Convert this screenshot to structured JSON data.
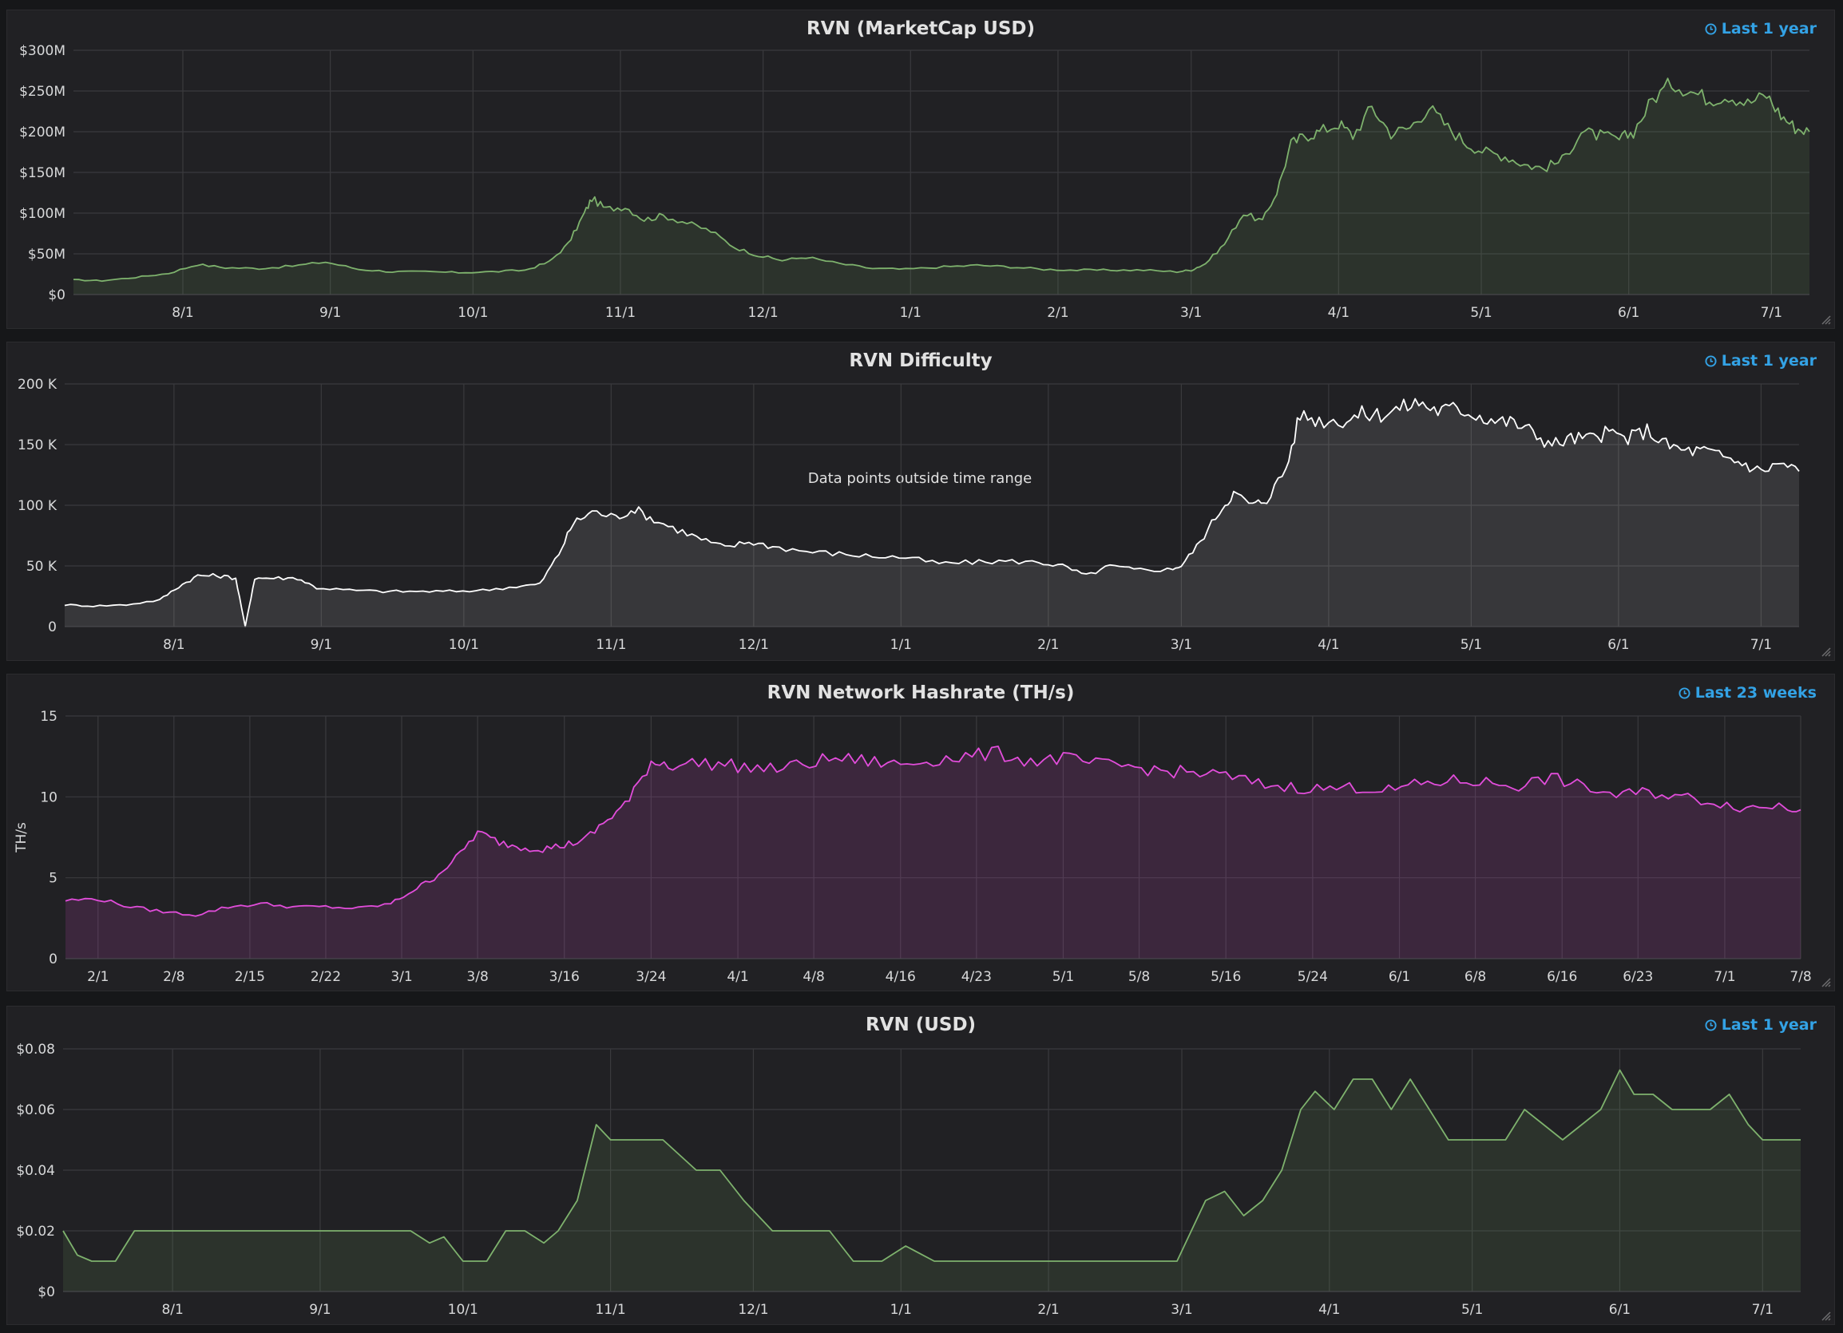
{
  "panels": [
    {
      "title": "RVN (MarketCap USD)",
      "time_info": "Last 1 year",
      "icon": "clock-icon"
    },
    {
      "title": "RVN Difficulty",
      "time_info": "Last 1 year",
      "icon": "clock-icon",
      "annotation": "Data points outside time range"
    },
    {
      "title": "RVN Network Hashrate (TH/s)",
      "time_info": "Last 23 weeks",
      "icon": "clock-icon"
    },
    {
      "title": "RVN (USD)",
      "time_info": "Last 1 year",
      "icon": "clock-icon"
    }
  ],
  "chart_data": [
    {
      "type": "area",
      "title": "RVN (MarketCap USD)",
      "ylabel": "",
      "ylim": [
        0,
        300
      ],
      "y_unit": "millions USD",
      "y_ticks": [
        0,
        50,
        100,
        150,
        200,
        250,
        300
      ],
      "y_tick_labels": [
        "$0",
        "$50M",
        "$100M",
        "$150M",
        "$200M",
        "$250M",
        "$300M"
      ],
      "x_tick_labels": [
        "8/1",
        "9/1",
        "10/1",
        "11/1",
        "12/1",
        "1/1",
        "2/1",
        "3/1",
        "4/1",
        "5/1",
        "6/1",
        "7/1"
      ],
      "x_range": [
        "2018-07-09",
        "2019-07-09"
      ],
      "color": "#7eb26d",
      "grid": true,
      "series": [
        {
          "x": [
            "2018-07-09",
            "2018-07-15",
            "2018-07-22",
            "2018-07-29",
            "2018-08-04",
            "2018-08-10",
            "2018-08-17",
            "2018-08-24",
            "2018-08-31",
            "2018-09-07",
            "2018-09-14",
            "2018-09-21",
            "2018-09-28",
            "2018-10-05",
            "2018-10-12",
            "2018-10-17",
            "2018-10-21",
            "2018-10-24",
            "2018-10-26",
            "2018-10-29",
            "2018-11-02",
            "2018-11-06",
            "2018-11-10",
            "2018-11-15",
            "2018-11-20",
            "2018-11-25",
            "2018-11-30",
            "2018-12-05",
            "2018-12-10",
            "2018-12-17",
            "2018-12-24",
            "2018-12-31",
            "2019-01-08",
            "2019-01-15",
            "2019-01-22",
            "2019-01-29",
            "2019-02-05",
            "2019-02-12",
            "2019-02-19",
            "2019-02-26",
            "2019-03-01",
            "2019-03-04",
            "2019-03-08",
            "2019-03-12",
            "2019-03-16",
            "2019-03-19",
            "2019-03-22",
            "2019-03-25",
            "2019-03-28",
            "2019-04-01",
            "2019-04-04",
            "2019-04-08",
            "2019-04-12",
            "2019-04-16",
            "2019-04-20",
            "2019-04-24",
            "2019-04-28",
            "2019-05-02",
            "2019-05-06",
            "2019-05-10",
            "2019-05-14",
            "2019-05-18",
            "2019-05-22",
            "2019-05-26",
            "2019-05-30",
            "2019-06-02",
            "2019-06-06",
            "2019-06-10",
            "2019-06-14",
            "2019-06-18",
            "2019-06-22",
            "2019-06-26",
            "2019-06-30",
            "2019-07-03",
            "2019-07-06",
            "2019-07-09"
          ],
          "values": [
            18,
            17,
            21,
            26,
            37,
            33,
            32,
            35,
            40,
            31,
            28,
            28,
            27,
            28,
            30,
            40,
            62,
            95,
            118,
            105,
            108,
            92,
            97,
            88,
            78,
            58,
            48,
            42,
            46,
            38,
            32,
            31,
            34,
            36,
            34,
            31,
            30,
            30,
            30,
            28,
            30,
            38,
            62,
            100,
            90,
            126,
            185,
            195,
            200,
            210,
            195,
            230,
            198,
            205,
            230,
            205,
            185,
            175,
            170,
            160,
            155,
            165,
            200,
            195,
            190,
            200,
            240,
            260,
            250,
            240,
            245,
            235,
            245,
            220,
            205,
            200
          ]
        }
      ]
    },
    {
      "type": "area",
      "title": "RVN Difficulty",
      "ylabel": "",
      "ylim": [
        0,
        200
      ],
      "y_unit": "thousands",
      "y_ticks": [
        0,
        50,
        100,
        150,
        200
      ],
      "y_tick_labels": [
        "0",
        "50 K",
        "100 K",
        "150 K",
        "200 K"
      ],
      "x_tick_labels": [
        "8/1",
        "9/1",
        "10/1",
        "11/1",
        "12/1",
        "1/1",
        "2/1",
        "3/1",
        "4/1",
        "5/1",
        "6/1",
        "7/1"
      ],
      "x_range": [
        "2018-07-09",
        "2019-07-09"
      ],
      "color": "#ffffff",
      "grid": true,
      "series": [
        {
          "x": [
            "2018-07-09",
            "2018-07-15",
            "2018-07-22",
            "2018-07-29",
            "2018-08-02",
            "2018-08-06",
            "2018-08-10",
            "2018-08-14",
            "2018-08-16",
            "2018-08-18",
            "2018-08-22",
            "2018-08-27",
            "2018-08-31",
            "2018-09-07",
            "2018-09-14",
            "2018-09-21",
            "2018-09-28",
            "2018-10-05",
            "2018-10-12",
            "2018-10-17",
            "2018-10-21",
            "2018-10-24",
            "2018-10-28",
            "2018-11-02",
            "2018-11-06",
            "2018-11-10",
            "2018-11-15",
            "2018-11-20",
            "2018-11-25",
            "2018-11-30",
            "2018-12-05",
            "2018-12-12",
            "2018-12-19",
            "2018-12-26",
            "2019-01-02",
            "2019-01-09",
            "2019-01-16",
            "2019-01-23",
            "2019-01-30",
            "2019-02-04",
            "2019-02-09",
            "2019-02-14",
            "2019-02-19",
            "2019-02-26",
            "2019-03-01",
            "2019-03-05",
            "2019-03-09",
            "2019-03-12",
            "2019-03-16",
            "2019-03-19",
            "2019-03-23",
            "2019-03-26",
            "2019-03-30",
            "2019-04-04",
            "2019-04-08",
            "2019-04-12",
            "2019-04-16",
            "2019-04-20",
            "2019-04-24",
            "2019-04-28",
            "2019-05-02",
            "2019-05-06",
            "2019-05-10",
            "2019-05-14",
            "2019-05-18",
            "2019-05-22",
            "2019-05-26",
            "2019-05-30",
            "2019-06-03",
            "2019-06-07",
            "2019-06-11",
            "2019-06-15",
            "2019-06-19",
            "2019-06-23",
            "2019-06-27",
            "2019-07-01",
            "2019-07-05",
            "2019-07-09"
          ],
          "values": [
            18,
            17,
            18,
            22,
            33,
            42,
            42,
            40,
            0,
            40,
            40,
            40,
            32,
            30,
            29,
            29,
            29,
            30,
            33,
            35,
            60,
            85,
            95,
            90,
            97,
            88,
            80,
            72,
            65,
            70,
            66,
            62,
            60,
            58,
            57,
            52,
            53,
            54,
            53,
            50,
            42,
            50,
            47,
            47,
            50,
            70,
            95,
            110,
            100,
            105,
            130,
            175,
            170,
            170,
            175,
            175,
            180,
            185,
            178,
            180,
            175,
            170,
            168,
            160,
            150,
            155,
            155,
            160,
            155,
            162,
            150,
            145,
            145,
            140,
            135,
            128,
            135,
            128
          ]
        }
      ]
    },
    {
      "type": "area",
      "title": "RVN Network Hashrate (TH/s)",
      "ylabel": "TH/s",
      "ylim": [
        0,
        15
      ],
      "y_ticks": [
        0,
        5,
        10,
        15
      ],
      "y_tick_labels": [
        "0",
        "5",
        "10",
        "15"
      ],
      "x_tick_labels": [
        "2/1",
        "2/8",
        "2/15",
        "2/22",
        "3/1",
        "3/8",
        "3/16",
        "3/24",
        "4/1",
        "4/8",
        "4/16",
        "4/23",
        "5/1",
        "5/8",
        "5/16",
        "5/24",
        "6/1",
        "6/8",
        "6/16",
        "6/23",
        "7/1",
        "7/8"
      ],
      "x_range": [
        "2019-01-29",
        "2019-07-08"
      ],
      "color": "#e24ddb",
      "grid": true,
      "series": [
        {
          "x": [
            "2019-01-29",
            "2019-02-01",
            "2019-02-04",
            "2019-02-07",
            "2019-02-10",
            "2019-02-13",
            "2019-02-16",
            "2019-02-19",
            "2019-02-22",
            "2019-02-25",
            "2019-02-28",
            "2019-03-02",
            "2019-03-04",
            "2019-03-06",
            "2019-03-08",
            "2019-03-10",
            "2019-03-12",
            "2019-03-14",
            "2019-03-16",
            "2019-03-18",
            "2019-03-20",
            "2019-03-22",
            "2019-03-24",
            "2019-03-26",
            "2019-03-29",
            "2019-04-01",
            "2019-04-04",
            "2019-04-07",
            "2019-04-10",
            "2019-04-13",
            "2019-04-16",
            "2019-04-19",
            "2019-04-22",
            "2019-04-25",
            "2019-04-28",
            "2019-05-01",
            "2019-05-04",
            "2019-05-07",
            "2019-05-10",
            "2019-05-13",
            "2019-05-16",
            "2019-05-19",
            "2019-05-22",
            "2019-05-25",
            "2019-05-28",
            "2019-05-31",
            "2019-06-03",
            "2019-06-06",
            "2019-06-09",
            "2019-06-12",
            "2019-06-15",
            "2019-06-18",
            "2019-06-21",
            "2019-06-24",
            "2019-06-27",
            "2019-06-30",
            "2019-07-03",
            "2019-07-06",
            "2019-07-08"
          ],
          "values": [
            3.6,
            3.7,
            3.2,
            2.9,
            2.7,
            3.2,
            3.4,
            3.2,
            3.2,
            3.1,
            3.4,
            4.2,
            5.0,
            6.2,
            7.8,
            7.2,
            6.9,
            6.8,
            7.0,
            7.4,
            8.6,
            9.8,
            12.2,
            12.0,
            12.1,
            11.9,
            11.7,
            12.0,
            12.4,
            12.2,
            12.0,
            12.3,
            12.5,
            12.7,
            12.2,
            12.4,
            12.0,
            11.9,
            11.6,
            11.5,
            11.3,
            10.8,
            10.6,
            10.5,
            10.6,
            10.4,
            10.8,
            11.0,
            10.9,
            10.7,
            11.2,
            10.6,
            10.1,
            10.3,
            10.0,
            9.7,
            9.3,
            9.5,
            9.2
          ]
        }
      ]
    },
    {
      "type": "area",
      "title": "RVN (USD)",
      "ylabel": "",
      "ylim": [
        0,
        0.08
      ],
      "y_ticks": [
        0,
        0.02,
        0.04,
        0.06,
        0.08
      ],
      "y_tick_labels": [
        "$0",
        "$0.02",
        "$0.04",
        "$0.06",
        "$0.08"
      ],
      "x_tick_labels": [
        "8/1",
        "9/1",
        "10/1",
        "11/1",
        "12/1",
        "1/1",
        "2/1",
        "3/1",
        "4/1",
        "5/1",
        "6/1",
        "7/1"
      ],
      "x_range": [
        "2018-07-09",
        "2019-07-09"
      ],
      "color": "#7eb26d",
      "grid": true,
      "series": [
        {
          "x": [
            "2018-07-09",
            "2018-07-12",
            "2018-07-15",
            "2018-07-20",
            "2018-07-24",
            "2018-08-05",
            "2018-08-20",
            "2018-09-05",
            "2018-09-20",
            "2018-09-24",
            "2018-09-27",
            "2018-10-01",
            "2018-10-06",
            "2018-10-10",
            "2018-10-14",
            "2018-10-18",
            "2018-10-21",
            "2018-10-25",
            "2018-10-29",
            "2018-11-01",
            "2018-11-06",
            "2018-11-12",
            "2018-11-19",
            "2018-11-24",
            "2018-11-29",
            "2018-12-05",
            "2018-12-12",
            "2018-12-17",
            "2018-12-22",
            "2018-12-28",
            "2019-01-02",
            "2019-01-08",
            "2019-01-14",
            "2019-01-20",
            "2019-01-25",
            "2019-02-01",
            "2019-02-10",
            "2019-02-20",
            "2019-02-28",
            "2019-03-03",
            "2019-03-06",
            "2019-03-10",
            "2019-03-14",
            "2019-03-18",
            "2019-03-22",
            "2019-03-26",
            "2019-03-29",
            "2019-04-02",
            "2019-04-06",
            "2019-04-10",
            "2019-04-14",
            "2019-04-18",
            "2019-04-22",
            "2019-04-26",
            "2019-04-30",
            "2019-05-04",
            "2019-05-08",
            "2019-05-12",
            "2019-05-16",
            "2019-05-20",
            "2019-05-24",
            "2019-05-28",
            "2019-06-01",
            "2019-06-04",
            "2019-06-08",
            "2019-06-12",
            "2019-06-16",
            "2019-06-20",
            "2019-06-24",
            "2019-06-28",
            "2019-07-01",
            "2019-07-04",
            "2019-07-09"
          ],
          "values": [
            0.02,
            0.012,
            0.01,
            0.01,
            0.02,
            0.02,
            0.02,
            0.02,
            0.02,
            0.016,
            0.018,
            0.01,
            0.01,
            0.02,
            0.02,
            0.016,
            0.02,
            0.03,
            0.055,
            0.05,
            0.05,
            0.05,
            0.04,
            0.04,
            0.03,
            0.02,
            0.02,
            0.02,
            0.01,
            0.01,
            0.015,
            0.01,
            0.01,
            0.01,
            0.01,
            0.01,
            0.01,
            0.01,
            0.01,
            0.02,
            0.03,
            0.033,
            0.025,
            0.03,
            0.04,
            0.06,
            0.066,
            0.06,
            0.07,
            0.07,
            0.06,
            0.07,
            0.06,
            0.05,
            0.05,
            0.05,
            0.05,
            0.06,
            0.055,
            0.05,
            0.055,
            0.06,
            0.073,
            0.065,
            0.065,
            0.06,
            0.06,
            0.06,
            0.065,
            0.055,
            0.05,
            0.05,
            0.05
          ]
        }
      ]
    }
  ]
}
